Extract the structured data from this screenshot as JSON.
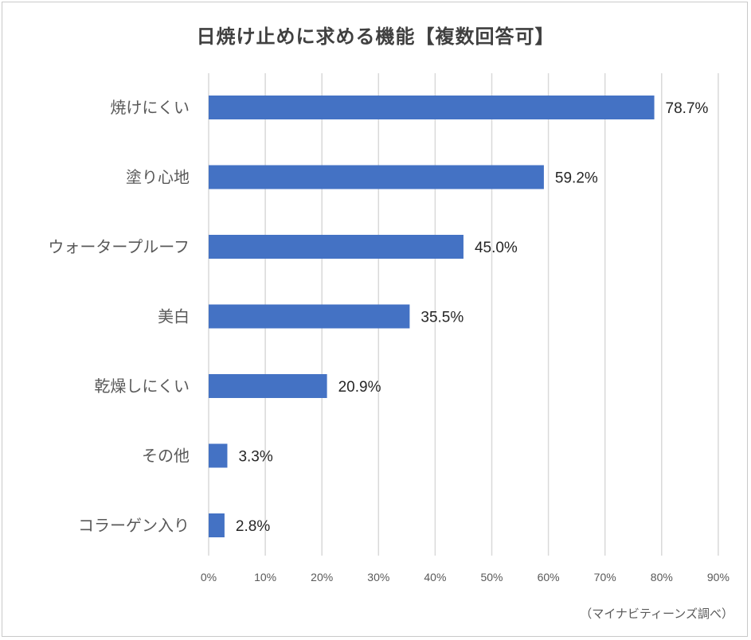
{
  "chart_data": {
    "type": "bar",
    "orientation": "horizontal",
    "title": "日焼け止めに求める機能【複数回答可】",
    "categories": [
      "焼けにくい",
      "塗り心地",
      "ウォータープルーフ",
      "美白",
      "乾燥しにくい",
      "その他",
      "コラーゲン入り"
    ],
    "values": [
      78.7,
      59.2,
      45.0,
      35.5,
      20.9,
      3.3,
      2.8
    ],
    "value_labels": [
      "78.7%",
      "59.2%",
      "45.0%",
      "35.5%",
      "20.9%",
      "3.3%",
      "2.8%"
    ],
    "x_ticks": [
      "0%",
      "10%",
      "20%",
      "30%",
      "40%",
      "50%",
      "60%",
      "70%",
      "80%",
      "90%"
    ],
    "xlim": [
      0,
      90
    ],
    "xlabel": "",
    "ylabel": "",
    "grid": true,
    "bar_color": "#4472c4",
    "grid_color": "#d9d9d9"
  },
  "source_note": "（マイナビティーンズ調べ）"
}
